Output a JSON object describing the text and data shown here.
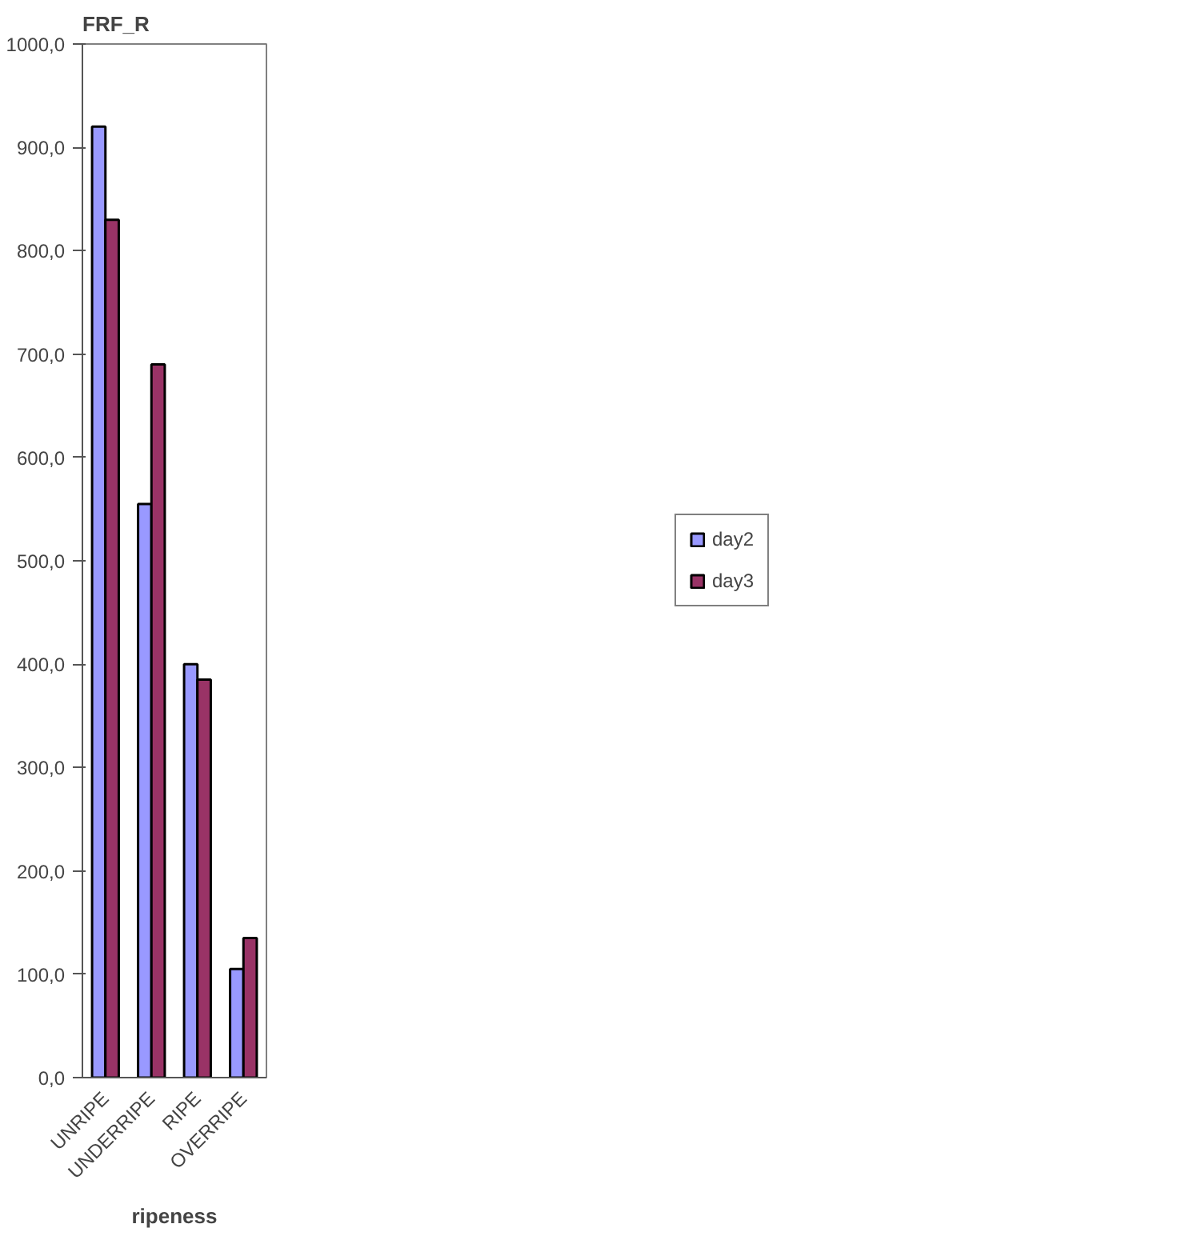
{
  "chart_data": {
    "type": "bar",
    "title": "FRF_R",
    "xlabel": "ripeness",
    "categories": [
      "UNRIPE",
      "UNDERRIPE",
      "RIPE",
      "OVERRIPE"
    ],
    "series": [
      {
        "name": "day2",
        "color": "#9999ff",
        "values": [
          920,
          555,
          400,
          105
        ]
      },
      {
        "name": "day3",
        "color": "#993366",
        "values": [
          830,
          690,
          385,
          135
        ]
      }
    ],
    "ylim": [
      0,
      1000
    ],
    "yticks": [
      {
        "value": 0,
        "label": "0,0"
      },
      {
        "value": 100,
        "label": "100,0"
      },
      {
        "value": 200,
        "label": "200,0"
      },
      {
        "value": 300,
        "label": "300,0"
      },
      {
        "value": 400,
        "label": "400,0"
      },
      {
        "value": 500,
        "label": "500,0"
      },
      {
        "value": 600,
        "label": "600,0"
      },
      {
        "value": 700,
        "label": "700,0"
      },
      {
        "value": 800,
        "label": "800,0"
      },
      {
        "value": 900,
        "label": "900,0"
      },
      {
        "value": 1000,
        "label": "1000,0"
      }
    ],
    "grid": false,
    "legend": "right"
  }
}
